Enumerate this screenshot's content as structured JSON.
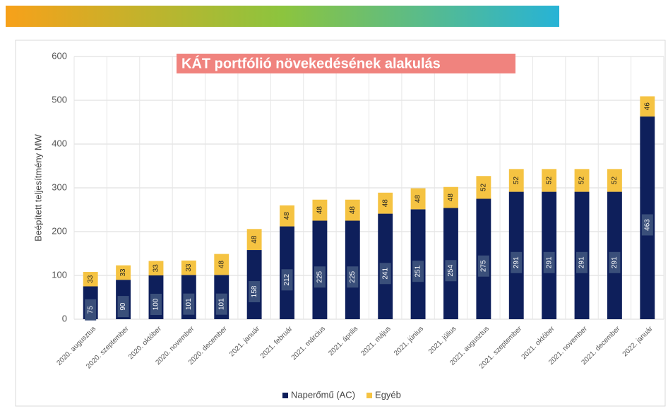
{
  "chart_data": {
    "type": "stacked_bar",
    "title": "KÁT portfólió növekedésének alakulás",
    "y_label": "Beépített teljesítmény MW",
    "categories": [
      "2020. augusztus",
      "2020. szeptember",
      "2020. október",
      "2020. november",
      "2020. december",
      "2021. január",
      "2021. február",
      "2021. március",
      "2021. április",
      "2021. május",
      "2021. június",
      "2021. július",
      "2021. augusztus",
      "2021. szeptember",
      "2021. október",
      "2021. november",
      "2021. december",
      "2022. január"
    ],
    "series": [
      {
        "name": "Naperőmű (AC)",
        "color": "#0e1f5b",
        "values": [
          75,
          90,
          100,
          101,
          101,
          158,
          212,
          225,
          225,
          241,
          251,
          254,
          275,
          291,
          291,
          291,
          291,
          463
        ]
      },
      {
        "name": "Egyéb",
        "color": "#f5c342",
        "values": [
          33,
          33,
          33,
          33,
          48,
          48,
          48,
          48,
          48,
          48,
          48,
          48,
          52,
          52,
          52,
          52,
          52,
          46
        ]
      }
    ],
    "ylim": [
      0,
      600
    ],
    "yticks": [
      0,
      100,
      200,
      300,
      400,
      500,
      600
    ],
    "grid": true,
    "legend": "bottom"
  }
}
